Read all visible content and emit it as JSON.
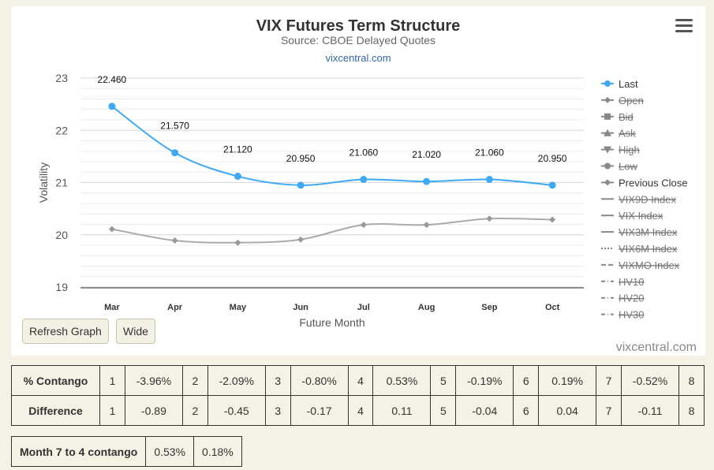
{
  "chart": {
    "title": "VIX Futures Term Structure",
    "subtitle": "Source: CBOE Delayed Quotes",
    "link": "vixcentral.com",
    "credit": "vixcentral.com"
  },
  "buttons": {
    "refresh": "Refresh Graph",
    "wide": "Wide"
  },
  "chart_data": {
    "type": "line",
    "xlabel": "Future Month",
    "ylabel": "Volatility",
    "categories": [
      "Mar",
      "Apr",
      "May",
      "Jun",
      "Jul",
      "Aug",
      "Sep",
      "Oct"
    ],
    "ylim": [
      19,
      23
    ],
    "yticks": [
      19,
      20,
      21,
      22,
      23
    ],
    "grid": true,
    "legend_position": "right",
    "series": [
      {
        "name": "Last",
        "color": "#3fa9f5",
        "values": [
          22.46,
          21.57,
          21.12,
          20.95,
          21.06,
          21.02,
          21.06,
          20.95
        ],
        "labels": [
          "22.460",
          "21.570",
          "21.120",
          "20.950",
          "21.060",
          "21.020",
          "21.060",
          "20.950"
        ]
      },
      {
        "name": "Previous Close",
        "color": "#aaaaaa",
        "values": [
          20.11,
          19.89,
          19.85,
          19.91,
          20.19,
          20.19,
          20.31,
          20.29
        ]
      }
    ],
    "legend": [
      {
        "name": "Last",
        "symbol": "circle",
        "hidden": false
      },
      {
        "name": "Open",
        "symbol": "diamond",
        "hidden": true
      },
      {
        "name": "Bid",
        "symbol": "square",
        "hidden": true
      },
      {
        "name": "Ask",
        "symbol": "triangle",
        "hidden": true
      },
      {
        "name": "High",
        "symbol": "triangle-down",
        "hidden": true
      },
      {
        "name": "Low",
        "symbol": "circle",
        "hidden": true
      },
      {
        "name": "Previous Close",
        "symbol": "diamond",
        "hidden": false
      },
      {
        "name": "VIX9D Index",
        "symbol": "solid",
        "hidden": true
      },
      {
        "name": "VIX Index",
        "symbol": "solid",
        "hidden": true
      },
      {
        "name": "VIX3M Index",
        "symbol": "solid",
        "hidden": true
      },
      {
        "name": "VIX6M Index",
        "symbol": "dotted",
        "hidden": true
      },
      {
        "name": "VIXMO Index",
        "symbol": "dashed",
        "hidden": true
      },
      {
        "name": "HV10",
        "symbol": "dashdot",
        "hidden": true
      },
      {
        "name": "HV20",
        "symbol": "dashdot",
        "hidden": true
      },
      {
        "name": "HV30",
        "symbol": "dashdot",
        "hidden": true
      }
    ]
  },
  "contango_table": {
    "rows": [
      {
        "label": "% Contango",
        "cells": [
          "1",
          "-3.96%",
          "2",
          "-2.09%",
          "3",
          "-0.80%",
          "4",
          "0.53%",
          "5",
          "-0.19%",
          "6",
          "0.19%",
          "7",
          "-0.52%",
          "8"
        ]
      },
      {
        "label": "Difference",
        "cells": [
          "1",
          "-0.89",
          "2",
          "-0.45",
          "3",
          "-0.17",
          "4",
          "0.11",
          "5",
          "-0.04",
          "6",
          "0.04",
          "7",
          "-0.11",
          "8"
        ]
      }
    ]
  },
  "month_contango": {
    "label": "Month 7 to 4 contango",
    "value1": "0.53%",
    "value2": "0.18%"
  }
}
